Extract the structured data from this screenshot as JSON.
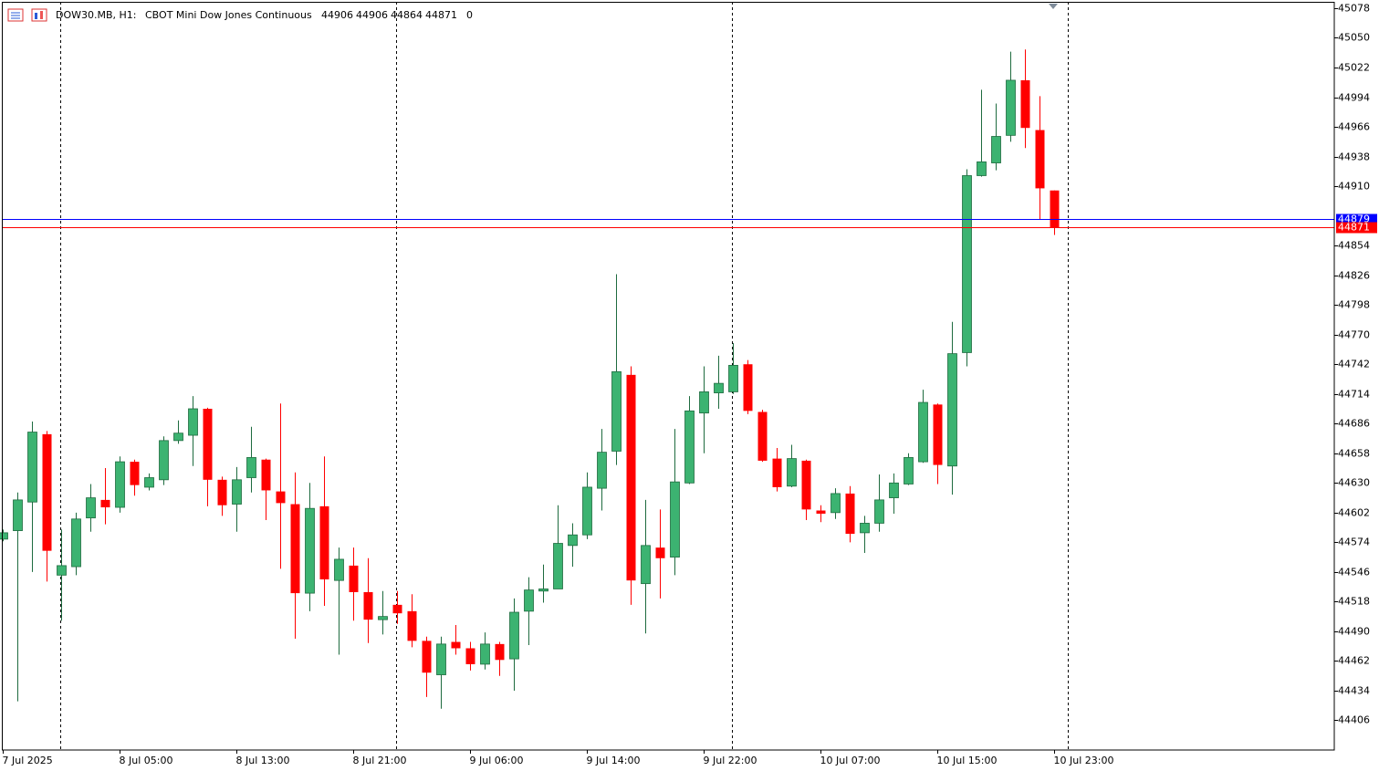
{
  "header": {
    "symbol": "DOW30.MB, H1:",
    "description": "CBOT Mini Dow Jones Continuous",
    "tail_value": 0
  },
  "chart_data": {
    "type": "candlestick",
    "categories": [
      "7 Jul 2025",
      null,
      null,
      null,
      null,
      null,
      null,
      null,
      "8 Jul 05:00",
      null,
      null,
      null,
      null,
      null,
      null,
      null,
      "8 Jul 13:00",
      null,
      null,
      null,
      null,
      null,
      null,
      null,
      "8 Jul 21:00",
      null,
      null,
      null,
      null,
      null,
      null,
      null,
      "9 Jul 06:00",
      null,
      null,
      null,
      null,
      null,
      null,
      null,
      "9 Jul 14:00",
      null,
      null,
      null,
      null,
      null,
      null,
      null,
      "9 Jul 22:00",
      null,
      null,
      null,
      null,
      null,
      null,
      null,
      "10 Jul 07:00",
      null,
      null,
      null,
      null,
      null,
      null,
      null,
      "10 Jul 15:00",
      null,
      null,
      null,
      null,
      null,
      null,
      null,
      "10 Jul 23:00"
    ],
    "open": [
      44577,
      44585,
      44612,
      44676,
      44543,
      44551,
      44597,
      44614,
      44607,
      44650,
      44626,
      44633,
      44670,
      44675,
      44700,
      44633,
      44610,
      44635,
      44652,
      44622,
      44610,
      44526,
      44608,
      44538,
      44552,
      44527,
      44501,
      44515,
      44509,
      44481,
      44449,
      44480,
      44474,
      44459,
      44478,
      44464,
      44509,
      44528,
      44530,
      44571,
      44581,
      44625,
      44660,
      44732,
      44535,
      44569,
      44560,
      44630,
      44696,
      44715,
      44716,
      44742,
      44697,
      44653,
      44627,
      44651,
      44604,
      44602,
      44620,
      44583,
      44592,
      44616,
      44629,
      44650,
      44704,
      44646,
      44753,
      44920,
      44932,
      44958,
      45010,
      44963,
      44906
    ],
    "high": [
      44586,
      44621,
      44688,
      44679,
      44586,
      44602,
      44629,
      44644,
      44655,
      44652,
      44639,
      44674,
      44689,
      44712,
      44701,
      44636,
      44645,
      44683,
      44653,
      44705,
      44640,
      44630,
      44655,
      44569,
      44569,
      44559,
      44528,
      44528,
      44525,
      44485,
      44485,
      44496,
      44480,
      44489,
      44480,
      44521,
      44541,
      44553,
      44609,
      44592,
      44640,
      44681,
      44827,
      44740,
      44614,
      44605,
      44681,
      44712,
      44740,
      44750,
      44762,
      44746,
      44699,
      44663,
      44666,
      44652,
      44609,
      44625,
      44627,
      44599,
      44638,
      44639,
      44658,
      44718,
      44705,
      44782,
      44926,
      45001,
      44988,
      45037,
      45039,
      44995,
      44906
    ],
    "low": [
      44575,
      44424,
      44546,
      44537,
      44500,
      44543,
      44584,
      44591,
      44602,
      44618,
      44623,
      44628,
      44667,
      44646,
      44608,
      44599,
      44584,
      44621,
      44595,
      44549,
      44483,
      44509,
      44514,
      44468,
      44500,
      44479,
      44487,
      44497,
      44475,
      44428,
      44417,
      44468,
      44453,
      44454,
      44448,
      44434,
      44477,
      44517,
      44530,
      44551,
      44577,
      44604,
      44647,
      44515,
      44488,
      44521,
      44543,
      44629,
      44658,
      44700,
      44714,
      44695,
      44650,
      44622,
      44626,
      44595,
      44593,
      44596,
      44574,
      44564,
      44584,
      44601,
      44628,
      44649,
      44629,
      44619,
      44740,
      44919,
      44925,
      44952,
      44946,
      44879,
      44864
    ],
    "close": [
      44583,
      44614,
      44678,
      44566,
      44552,
      44596,
      44616,
      44607,
      44650,
      44628,
      44635,
      44670,
      44677,
      44700,
      44633,
      44609,
      44633,
      44654,
      44623,
      44611,
      44526,
      44606,
      44539,
      44558,
      44527,
      44501,
      44504,
      44507,
      44481,
      44451,
      44478,
      44474,
      44459,
      44478,
      44463,
      44508,
      44529,
      44530,
      44573,
      44581,
      44626,
      44659,
      44735,
      44538,
      44571,
      44559,
      44631,
      44698,
      44716,
      44724,
      44741,
      44698,
      44651,
      44626,
      44653,
      44605,
      44601,
      44620,
      44582,
      44592,
      44614,
      44630,
      44654,
      44706,
      44647,
      44752,
      44920,
      44933,
      44957,
      45010,
      44965,
      44908,
      44871
    ],
    "up_color": "#3cb371",
    "down_color": "#ff0000",
    "bid": 44879,
    "bid_color": "#0000ff",
    "ylim": [
      44378,
      45084
    ],
    "yticks": [
      45078,
      45050,
      45022,
      44994,
      44966,
      44938,
      44910,
      44854,
      44826,
      44798,
      44770,
      44742,
      44714,
      44686,
      44658,
      44630,
      44602,
      44574,
      44546,
      44518,
      44490,
      44462,
      44434,
      44406
    ],
    "grid": false
  }
}
